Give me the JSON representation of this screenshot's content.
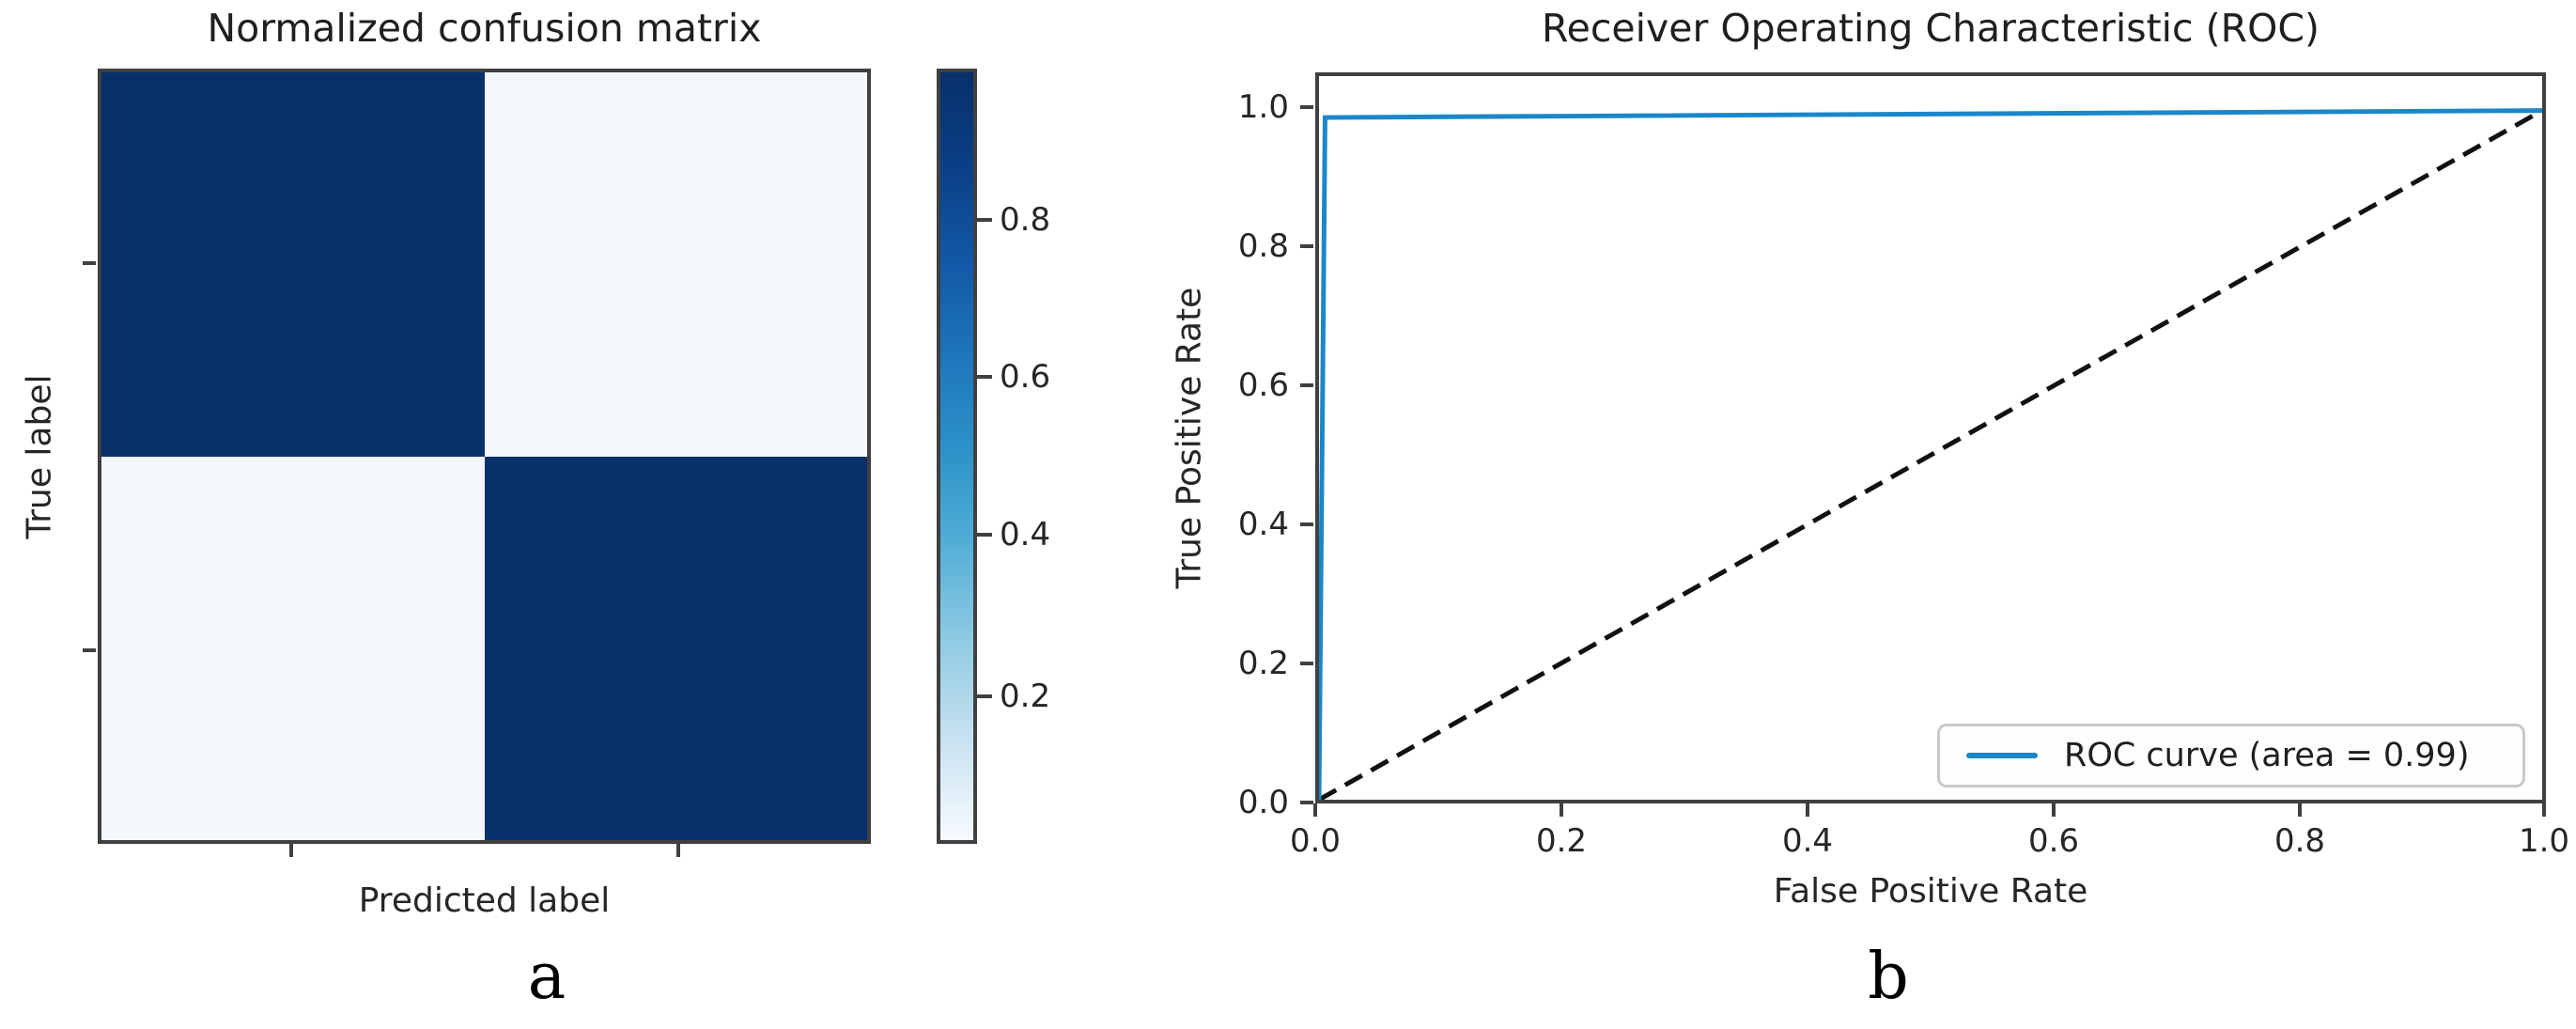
{
  "panel_a": {
    "title": "Normalized confusion matrix",
    "xlabel": "Predicted label",
    "ylabel": "True label",
    "caption": "a",
    "colorbar_tick_labels": [
      "0.8",
      "0.6",
      "0.4",
      "0.2"
    ]
  },
  "panel_b": {
    "title": "Receiver Operating Characteristic (ROC)",
    "xlabel": "False Positive Rate",
    "ylabel": "True Positive Rate",
    "caption": "b",
    "xtick_labels": [
      "0.0",
      "0.2",
      "0.4",
      "0.6",
      "0.8",
      "1.0"
    ],
    "ytick_labels": [
      "1.0",
      "0.8",
      "0.6",
      "0.4",
      "0.2",
      "0.0"
    ],
    "legend_label": "ROC curve (area = 0.99)"
  },
  "chart_data": [
    {
      "type": "heatmap",
      "title": "Normalized confusion matrix",
      "xlabel": "Predicted label",
      "ylabel": "True label",
      "matrix": [
        [
          0.99,
          0.01
        ],
        [
          0.01,
          0.99
        ]
      ],
      "cell_colors": [
        [
          "#08306b",
          "#f4f7fc"
        ],
        [
          "#f4f7fc",
          "#08306b"
        ]
      ],
      "colormap": "Blues",
      "colorbar_ticks": [
        0.8,
        0.6,
        0.4,
        0.2
      ],
      "colorbar_range": [
        0.02,
        0.99
      ],
      "grid": false
    },
    {
      "type": "line",
      "title": "Receiver Operating Characteristic (ROC)",
      "xlabel": "False Positive Rate",
      "ylabel": "True Positive Rate",
      "xlim": [
        0.0,
        1.0
      ],
      "ylim": [
        0.0,
        1.05
      ],
      "xticks": [
        0.0,
        0.2,
        0.4,
        0.6,
        0.8,
        1.0
      ],
      "yticks": [
        0.0,
        0.2,
        0.4,
        0.6,
        0.8,
        1.0
      ],
      "grid": false,
      "legend_position": "lower right",
      "series": [
        {
          "name": "ROC curve (area = 0.99)",
          "color": "#1b87c9",
          "style": "solid",
          "width": 5,
          "x": [
            0.0,
            0.005,
            1.0
          ],
          "y": [
            0.0,
            0.99,
            1.0
          ]
        },
        {
          "name": "chance diagonal",
          "color": "#111111",
          "style": "dashed",
          "width": 5,
          "dash": "21 11",
          "x": [
            0.0,
            1.0
          ],
          "y": [
            0.0,
            1.0
          ]
        }
      ]
    }
  ]
}
